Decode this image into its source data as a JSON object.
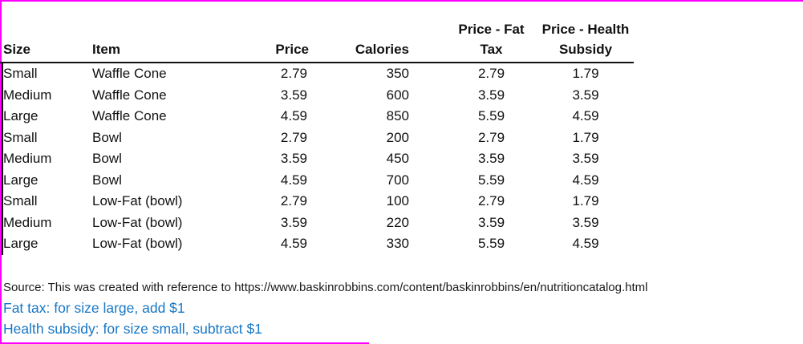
{
  "colors": {
    "frame_border": "#FF00FF",
    "note_blue": "#1877C5",
    "text": "#111111"
  },
  "chart_data": {
    "type": "table",
    "columns": [
      {
        "label": "Size",
        "line1": "",
        "line2": "Size"
      },
      {
        "label": "Item",
        "line1": "",
        "line2": "Item"
      },
      {
        "label": "Price",
        "line1": "",
        "line2": "Price"
      },
      {
        "label": "Calories",
        "line1": "",
        "line2": "Calories"
      },
      {
        "label": "Price - Fat Tax",
        "line1": "Price - Fat",
        "line2": "Tax"
      },
      {
        "label": "Price - Health Subsidy",
        "line1": "Price - Health",
        "line2": "Subsidy"
      }
    ],
    "rows": [
      [
        "Small",
        "Waffle Cone",
        "2.79",
        "350",
        "2.79",
        "1.79"
      ],
      [
        "Medium",
        "Waffle Cone",
        "3.59",
        "600",
        "3.59",
        "3.59"
      ],
      [
        "Large",
        "Waffle Cone",
        "4.59",
        "850",
        "5.59",
        "4.59"
      ],
      [
        "Small",
        "Bowl",
        "2.79",
        "200",
        "2.79",
        "1.79"
      ],
      [
        "Medium",
        "Bowl",
        "3.59",
        "450",
        "3.59",
        "3.59"
      ],
      [
        "Large",
        "Bowl",
        "4.59",
        "700",
        "5.59",
        "4.59"
      ],
      [
        "Small",
        "Low-Fat (bowl)",
        "2.79",
        "100",
        "2.79",
        "1.79"
      ],
      [
        "Medium",
        "Low-Fat (bowl)",
        "3.59",
        "220",
        "3.59",
        "3.59"
      ],
      [
        "Large",
        "Low-Fat (bowl)",
        "4.59",
        "330",
        "5.59",
        "4.59"
      ]
    ]
  },
  "footnotes": {
    "source": "Source: This was created with reference to https://www.baskinrobbins.com/content/baskinrobbins/en/nutritioncatalog.html",
    "fat_tax_note": "Fat tax: for size large, add $1",
    "health_subsidy_note": "Health subsidy: for size small, subtract $1"
  }
}
